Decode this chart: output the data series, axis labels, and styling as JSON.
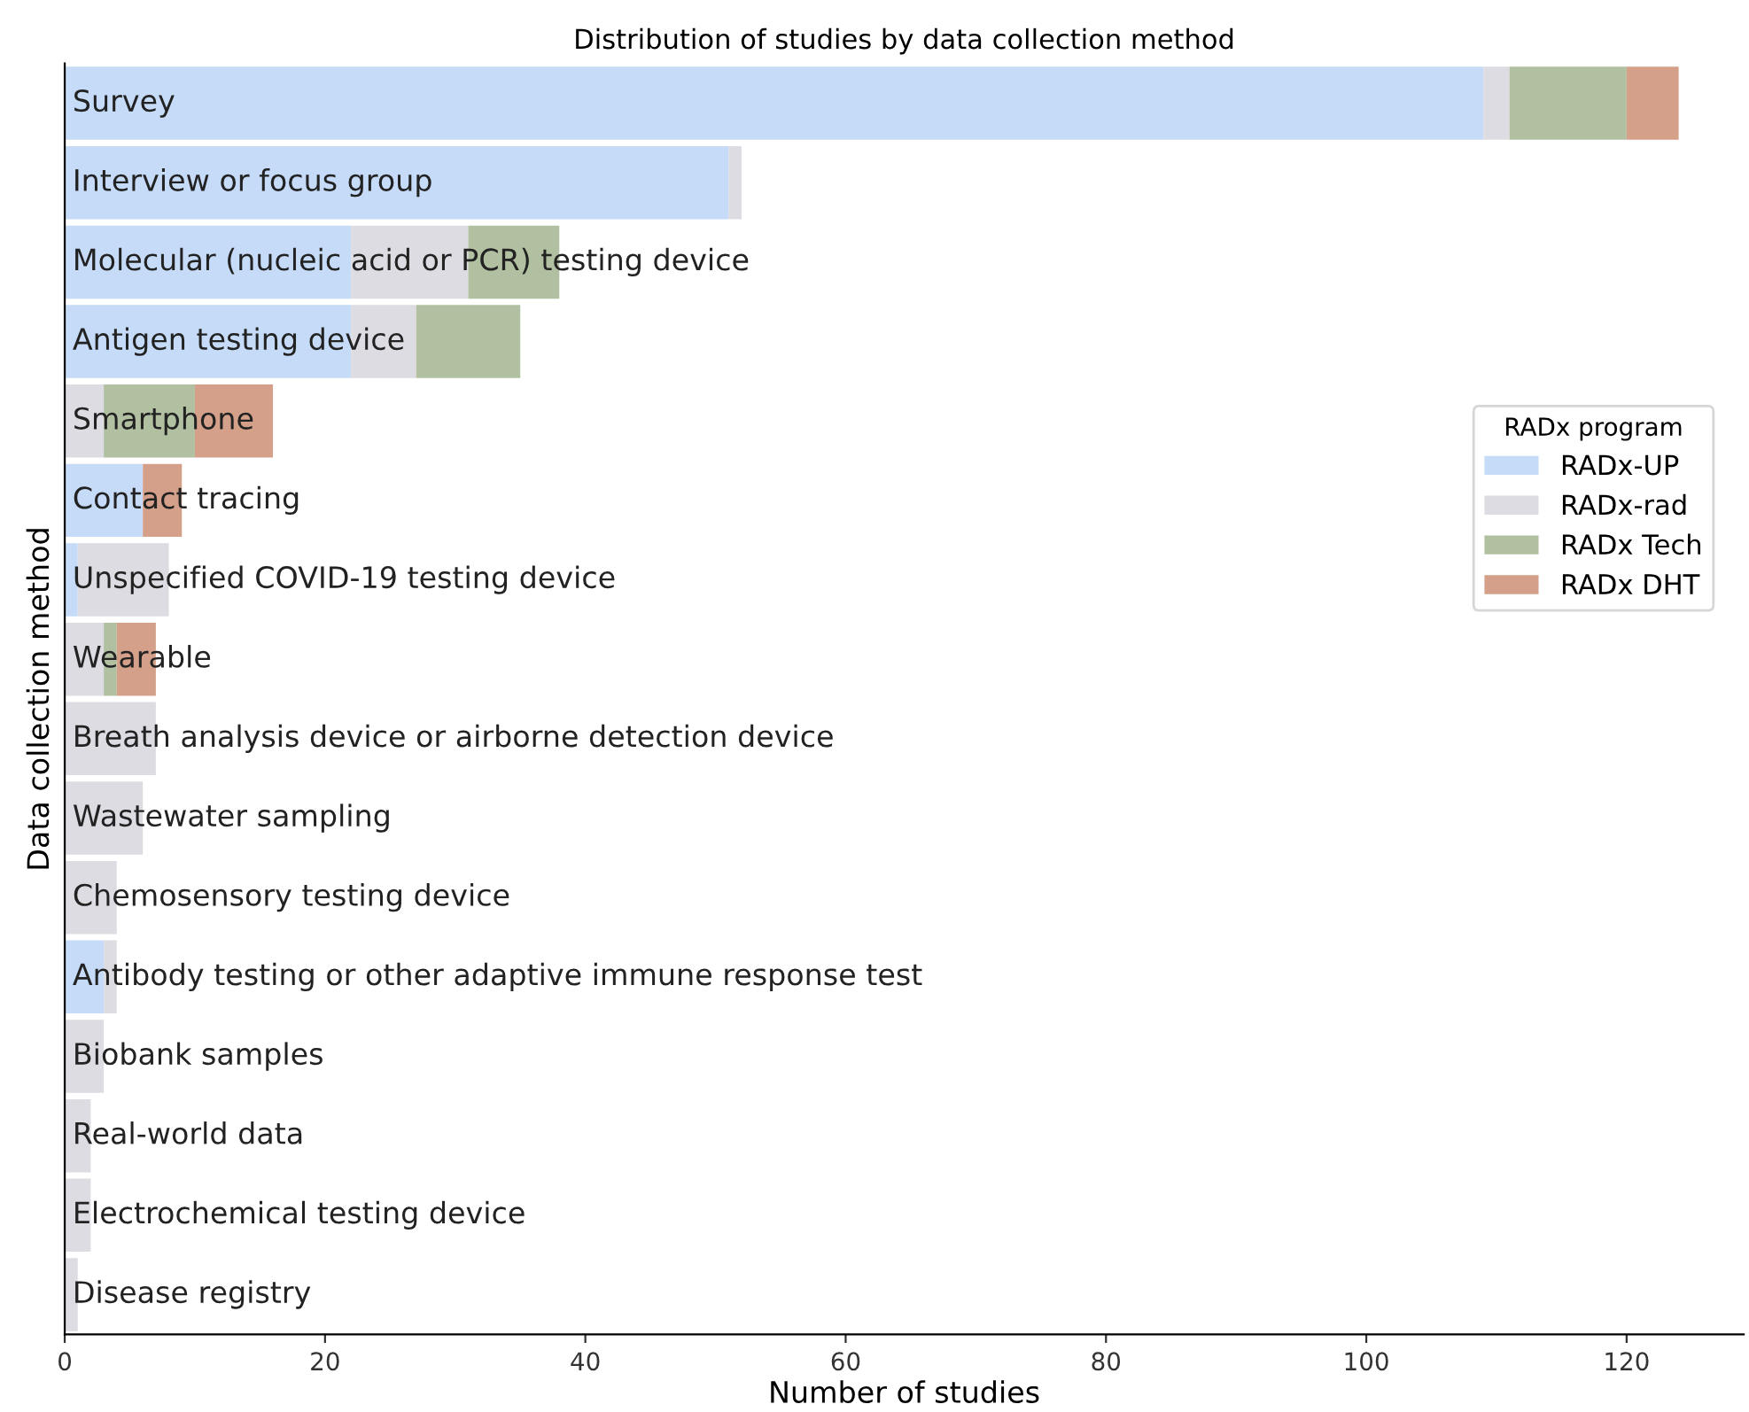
{
  "chart_data": {
    "type": "bar",
    "orientation": "horizontal",
    "stacked": true,
    "title": "Distribution of studies by data collection method",
    "xlabel": "Number of studies",
    "ylabel": "Data collection method",
    "legend_title": "RADx program",
    "categories": [
      "Survey",
      "Interview or focus group",
      "Molecular (nucleic acid or PCR) testing device",
      "Antigen testing device",
      "Smartphone",
      "Contact tracing",
      "Unspecified COVID-19 testing device",
      "Wearable",
      "Breath analysis device or airborne detection device",
      "Wastewater sampling",
      "Chemosensory testing device",
      "Antibody testing or other adaptive immune response test",
      "Biobank samples",
      "Real-world data",
      "Electrochemical testing device",
      "Disease registry"
    ],
    "series": [
      {
        "name": "RADx-UP",
        "color": "#c5dbf7",
        "values": [
          109,
          51,
          22,
          22,
          null,
          6,
          1,
          null,
          null,
          null,
          null,
          3,
          null,
          null,
          null,
          null
        ]
      },
      {
        "name": "RADx-rad",
        "color": "#dddce2",
        "values": [
          2,
          1,
          9,
          5,
          3,
          null,
          7,
          3,
          7,
          6,
          4,
          1,
          3,
          2,
          2,
          1
        ]
      },
      {
        "name": "RADx Tech",
        "color": "#b2c0a2",
        "values": [
          9,
          null,
          7,
          8,
          7,
          null,
          null,
          1,
          null,
          null,
          null,
          null,
          null,
          null,
          null,
          null
        ]
      },
      {
        "name": "RADx DHT",
        "color": "#d4a08a",
        "values": [
          4,
          null,
          null,
          null,
          6,
          3,
          null,
          3,
          null,
          null,
          null,
          null,
          null,
          null,
          null,
          null
        ]
      }
    ],
    "xlim": [
      0,
      129
    ],
    "xticks": [
      0,
      20,
      40,
      60,
      80,
      100,
      120
    ],
    "grid": false,
    "legend": "right"
  }
}
